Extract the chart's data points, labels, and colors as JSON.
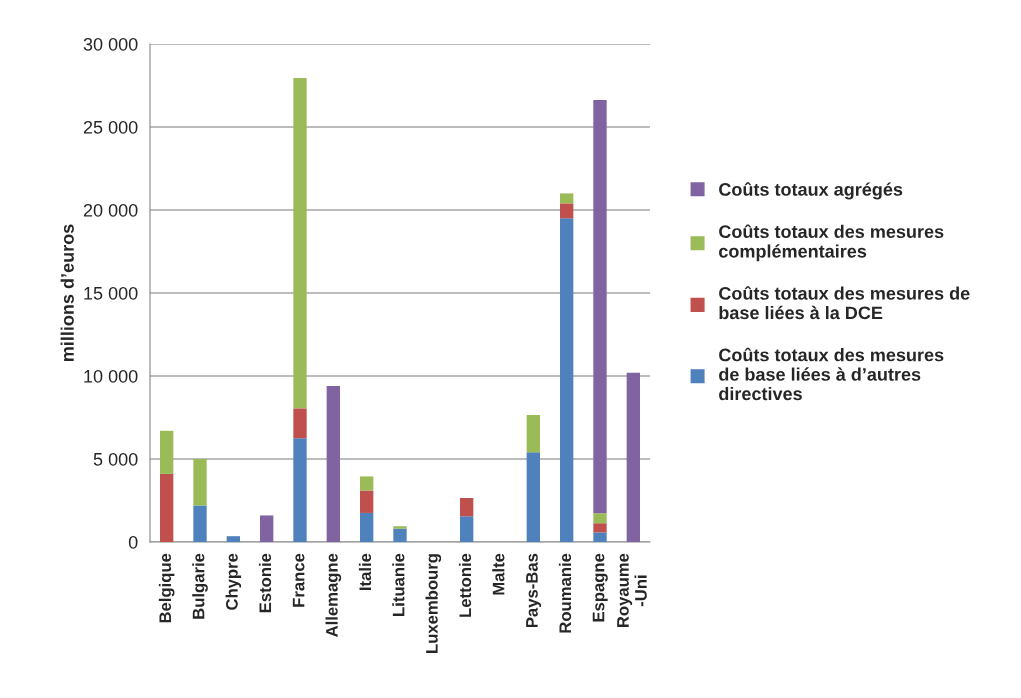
{
  "chart_data": {
    "type": "bar",
    "stacked": true,
    "ylabel": "millions d’euros",
    "categories": [
      "Belgique",
      "Bulgarie",
      "Chypre",
      "Estonie",
      "France",
      "Allemagne",
      "Italie",
      "Lituanie",
      "Luxembourg",
      "Lettonie",
      "Malte",
      "Pays-Bas",
      "Roumanie",
      "Espagne",
      "Royaume\n-Uni"
    ],
    "series": [
      {
        "name": "Coûts totaux des mesures\nde base liées à d’autres\ndirectives",
        "color": "#4f81bd",
        "values": [
          0,
          2200,
          350,
          0,
          6250,
          0,
          1750,
          800,
          0,
          1550,
          0,
          5400,
          19500,
          580,
          0
        ]
      },
      {
        "name": "Coûts totaux des mesures de\nbase liées à la DCE",
        "color": "#c0504d",
        "values": [
          4100,
          0,
          0,
          0,
          1800,
          0,
          1350,
          0,
          0,
          1100,
          0,
          0,
          900,
          550,
          0
        ]
      },
      {
        "name": "Coûts totaux des mesures\ncomplémentaires",
        "color": "#9bbb59",
        "values": [
          2600,
          2800,
          0,
          0,
          19900,
          0,
          850,
          150,
          0,
          0,
          0,
          2250,
          600,
          600,
          0
        ]
      },
      {
        "name": "Coûts totaux agrégés",
        "color": "#8064a2",
        "values": [
          0,
          0,
          0,
          1600,
          0,
          9400,
          0,
          0,
          0,
          0,
          0,
          0,
          0,
          24900,
          10200
        ]
      }
    ],
    "ylim": [
      0,
      30000
    ],
    "yticks": [
      0,
      {
        "value": 5000,
        "label": "5 000"
      },
      {
        "value": 10000,
        "label": "10 000"
      },
      {
        "value": 15000,
        "label": "15 000"
      },
      {
        "value": 20000,
        "label": "20 000"
      },
      {
        "value": 25000,
        "label": "25 000"
      },
      {
        "value": 30000,
        "label": "30 000"
      }
    ],
    "grid": "y",
    "legend": "right"
  }
}
